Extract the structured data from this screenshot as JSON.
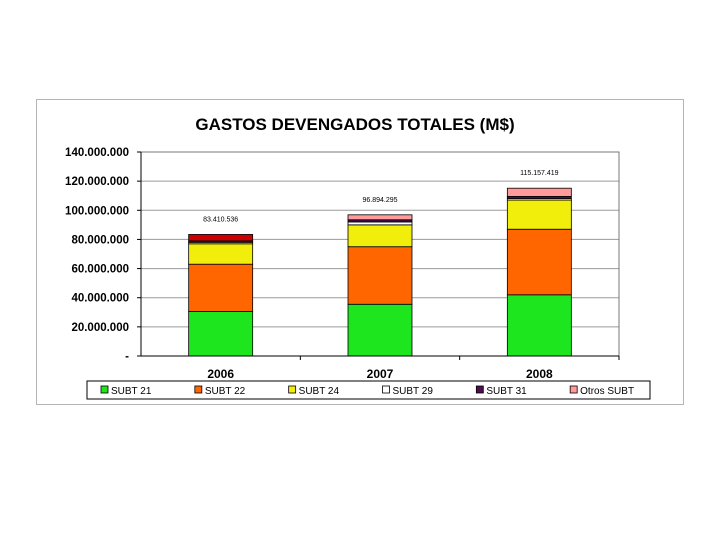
{
  "chart_data": {
    "type": "bar",
    "stacked": true,
    "title": "GASTOS DEVENGADOS TOTALES (M$)",
    "xlabel": "",
    "ylabel": "",
    "categories": [
      "2006",
      "2007",
      "2008"
    ],
    "ylim": [
      0,
      140000000
    ],
    "yticks": [
      0,
      20000000,
      40000000,
      60000000,
      80000000,
      100000000,
      120000000,
      140000000
    ],
    "ytick_labels": [
      "-",
      "20.000.000",
      "40.000.000",
      "60.000.000",
      "80.000.000",
      "100.000.000",
      "120.000.000",
      "140.000.000"
    ],
    "grid": true,
    "legend_position": "bottom",
    "series": [
      {
        "name": "SUBT 21",
        "color": "#1ee61e",
        "values": [
          30500000,
          35500000,
          42000000
        ]
      },
      {
        "name": "SUBT 22",
        "color": "#ff6600",
        "values": [
          32500000,
          39500000,
          45000000
        ]
      },
      {
        "name": "SUBT 24",
        "color": "#f2ee0c",
        "values": [
          14000000,
          15000000,
          20000000
        ]
      },
      {
        "name": "SUBT 29",
        "color": "#ffffff",
        "values": [
          1000000,
          2000000,
          1000000
        ]
      },
      {
        "name": "SUBT 31",
        "color": "#4b0f4b",
        "values": [
          1000000,
          1500000,
          1500000
        ]
      },
      {
        "name": "Otros SUBT",
        "color": "#ff9b9b",
        "values": [
          4410536,
          3394295,
          5657419
        ]
      }
    ],
    "totals": [
      83410536,
      96894295,
      115157419
    ],
    "total_labels": [
      "83.410.536",
      "96.894.295",
      "115.157.419"
    ],
    "top_segment_color_2006": "#cc0000"
  }
}
